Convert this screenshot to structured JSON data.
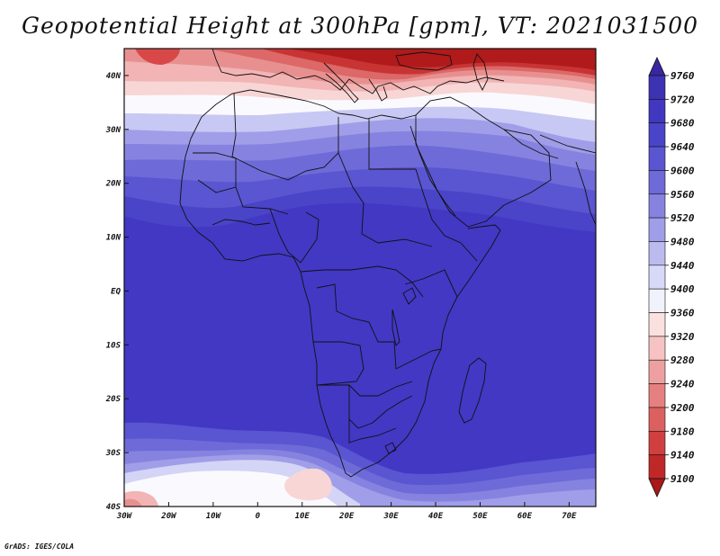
{
  "title": "Geopotential Height at 300hPa [gpm], VT: 2021031500",
  "credit": "GrADS: IGES/COLA",
  "map": {
    "lat_labels": [
      "40N",
      "30N",
      "20N",
      "10N",
      "EQ",
      "10S",
      "20S",
      "30S",
      "40S"
    ],
    "lat_values": [
      40,
      30,
      20,
      10,
      0,
      -10,
      -20,
      -30,
      -40
    ],
    "lon_labels": [
      "30W",
      "20W",
      "10W",
      "0",
      "10E",
      "20E",
      "30E",
      "40E",
      "50E",
      "60E",
      "70E"
    ],
    "lon_values": [
      -30,
      -20,
      -10,
      0,
      10,
      20,
      30,
      40,
      50,
      60,
      70
    ],
    "lat_range": [
      -40,
      45
    ],
    "lon_range": [
      -30,
      76
    ]
  },
  "colorbar": {
    "levels": [
      9100,
      9140,
      9180,
      9200,
      9240,
      9280,
      9320,
      9360,
      9400,
      9440,
      9480,
      9520,
      9560,
      9600,
      9640,
      9680,
      9720,
      9760
    ],
    "colors_top_to_bottom": [
      "#3a26a0",
      "#3d31b4",
      "#4238c0",
      "#4a44c8",
      "#5a55d0",
      "#6e6ad8",
      "#8683e0",
      "#a09ee8",
      "#bcbbf0",
      "#d8d8f8",
      "#f2f2fc",
      "#fbe0e0",
      "#f6c2c2",
      "#eea0a0",
      "#e68080",
      "#dc6060",
      "#d04040",
      "#c02828",
      "#a81818"
    ]
  },
  "field_colors": {
    "dark_red": "#b01a1a",
    "red": "#d84848",
    "light_red": "#f2b4b4",
    "white": "#fafafe",
    "light_blue": "#d4d4f6",
    "mid_blue": "#8a88e2",
    "blue": "#5a55d0",
    "deep_blue": "#4238c4"
  }
}
